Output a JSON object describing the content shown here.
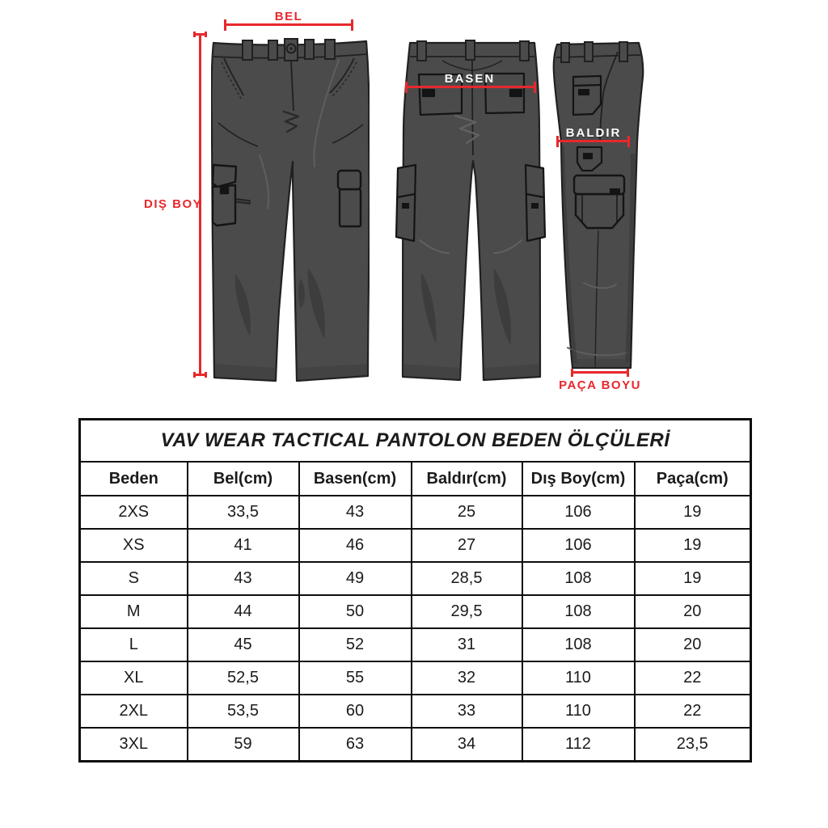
{
  "diagram": {
    "measurement_labels": {
      "bel": "BEL",
      "dis_boy": "DIŞ BOY",
      "basen": "BASEN",
      "baldir": "BALDIR",
      "paca_boyu": "PAÇA BOYU"
    },
    "views": [
      "front",
      "back",
      "side"
    ],
    "colors": {
      "measure_red": "#e7282d",
      "pants_fill": "#4b4b4b",
      "pants_outline": "#202020",
      "label_white": "#ffffff"
    }
  },
  "table": {
    "title": "VAV WEAR TACTICAL PANTOLON BEDEN ÖLÇÜLERİ",
    "columns": [
      "Beden",
      "Bel(cm)",
      "Basen(cm)",
      "Baldır(cm)",
      "Dış Boy(cm)",
      "Paça(cm)"
    ],
    "rows": [
      [
        "2XS",
        "33,5",
        "43",
        "25",
        "106",
        "19"
      ],
      [
        "XS",
        "41",
        "46",
        "27",
        "106",
        "19"
      ],
      [
        "S",
        "43",
        "49",
        "28,5",
        "108",
        "19"
      ],
      [
        "M",
        "44",
        "50",
        "29,5",
        "108",
        "20"
      ],
      [
        "L",
        "45",
        "52",
        "31",
        "108",
        "20"
      ],
      [
        "XL",
        "52,5",
        "55",
        "32",
        "110",
        "22"
      ],
      [
        "2XL",
        "53,5",
        "60",
        "33",
        "110",
        "22"
      ],
      [
        "3XL",
        "59",
        "63",
        "34",
        "112",
        "23,5"
      ]
    ]
  },
  "chart_data": {
    "type": "table",
    "title": "VAV WEAR TACTICAL PANTOLON BEDEN ÖLÇÜLERİ",
    "columns": [
      "Beden",
      "Bel(cm)",
      "Basen(cm)",
      "Baldır(cm)",
      "Dış Boy(cm)",
      "Paça(cm)"
    ],
    "rows": [
      [
        "2XS",
        "33,5",
        "43",
        "25",
        "106",
        "19"
      ],
      [
        "XS",
        "41",
        "46",
        "27",
        "106",
        "19"
      ],
      [
        "S",
        "43",
        "49",
        "28,5",
        "108",
        "19"
      ],
      [
        "M",
        "44",
        "50",
        "29,5",
        "108",
        "20"
      ],
      [
        "L",
        "45",
        "52",
        "31",
        "108",
        "20"
      ],
      [
        "XL",
        "52,5",
        "55",
        "32",
        "110",
        "22"
      ],
      [
        "2XL",
        "53,5",
        "60",
        "33",
        "110",
        "22"
      ],
      [
        "3XL",
        "59",
        "63",
        "34",
        "112",
        "23,5"
      ]
    ],
    "annotations": [
      "BEL",
      "DIŞ BOY",
      "BASEN",
      "BALDIR",
      "PAÇA BOYU"
    ]
  }
}
